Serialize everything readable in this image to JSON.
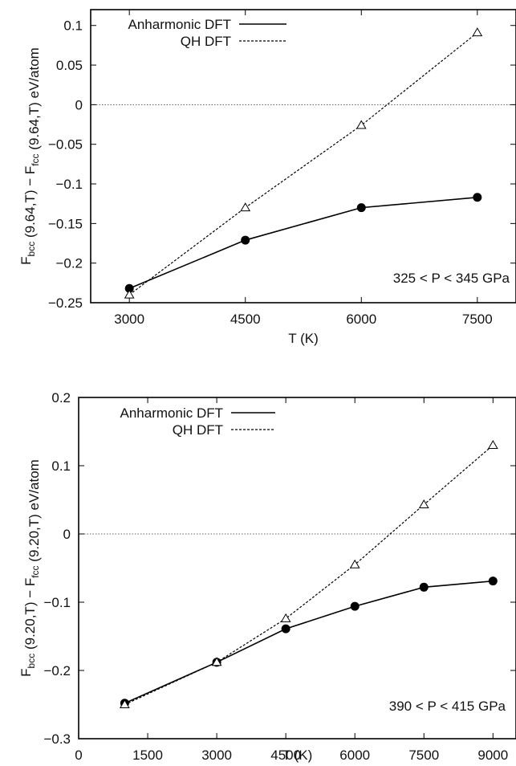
{
  "chart_data": [
    {
      "type": "line",
      "xlabel": "T (K)",
      "ylabel_parts": [
        "F",
        "bcc",
        " (9.64,T) − F",
        "fcc",
        " (9.64,T) eV/atom"
      ],
      "xlim": [
        2500,
        8000
      ],
      "ylim": [
        -0.25,
        0.12
      ],
      "xticks": [
        3000,
        4500,
        6000,
        7500
      ],
      "xtick_labels": [
        "3000",
        "4500",
        "6000",
        "7500"
      ],
      "yticks": [
        -0.25,
        -0.2,
        -0.15,
        -0.1,
        -0.05,
        0,
        0.05,
        0.1
      ],
      "ytick_labels": [
        "−0.25",
        "−0.2",
        "−0.15",
        "−0.1",
        "−0.05",
        "0",
        "0.05",
        "0.1"
      ],
      "zero_line": true,
      "legend_position": "top-left",
      "annotation": "325 < P < 345 GPa",
      "series": [
        {
          "name": "Anharmonic DFT",
          "style": "solid",
          "marker": "filled-circle",
          "color": "#000000",
          "x": [
            3000,
            4500,
            6000,
            7500
          ],
          "y": [
            -0.232,
            -0.171,
            -0.13,
            -0.117
          ]
        },
        {
          "name": "QH DFT",
          "style": "dashed",
          "marker": "open-triangle",
          "color": "#000000",
          "x": [
            3000,
            4500,
            6000,
            7500
          ],
          "y": [
            -0.24,
            -0.13,
            -0.026,
            0.091
          ]
        }
      ]
    },
    {
      "type": "line",
      "xlabel": "T (K)",
      "ylabel_parts": [
        "F",
        "bcc",
        " (9.20,T) − F",
        "fcc",
        " (9.20,T) eV/atom"
      ],
      "xlim": [
        0,
        9500
      ],
      "ylim": [
        -0.3,
        0.2
      ],
      "xticks": [
        0,
        1500,
        3000,
        4500,
        6000,
        7500,
        9000
      ],
      "xtick_labels": [
        "0",
        "1500",
        "3000",
        "4500",
        "6000",
        "7500",
        "9000"
      ],
      "yticks": [
        -0.3,
        -0.2,
        -0.1,
        0,
        0.1,
        0.2
      ],
      "ytick_labels": [
        "−0.3",
        "−0.2",
        "−0.1",
        "0",
        "0.1",
        "0.2"
      ],
      "zero_line": true,
      "legend_position": "top-left",
      "annotation": "390 < P < 415 GPa",
      "series": [
        {
          "name": "Anharmonic DFT",
          "style": "solid",
          "marker": "filled-circle",
          "color": "#000000",
          "x": [
            1000,
            3000,
            4500,
            6000,
            7500,
            9000
          ],
          "y": [
            -0.248,
            -0.188,
            -0.139,
            -0.106,
            -0.078,
            -0.069
          ]
        },
        {
          "name": "QH DFT",
          "style": "dashed",
          "marker": "open-triangle",
          "color": "#000000",
          "x": [
            1000,
            3000,
            4500,
            6000,
            7500,
            9000
          ],
          "y": [
            -0.25,
            -0.188,
            -0.124,
            -0.045,
            0.043,
            0.13
          ]
        }
      ]
    }
  ]
}
